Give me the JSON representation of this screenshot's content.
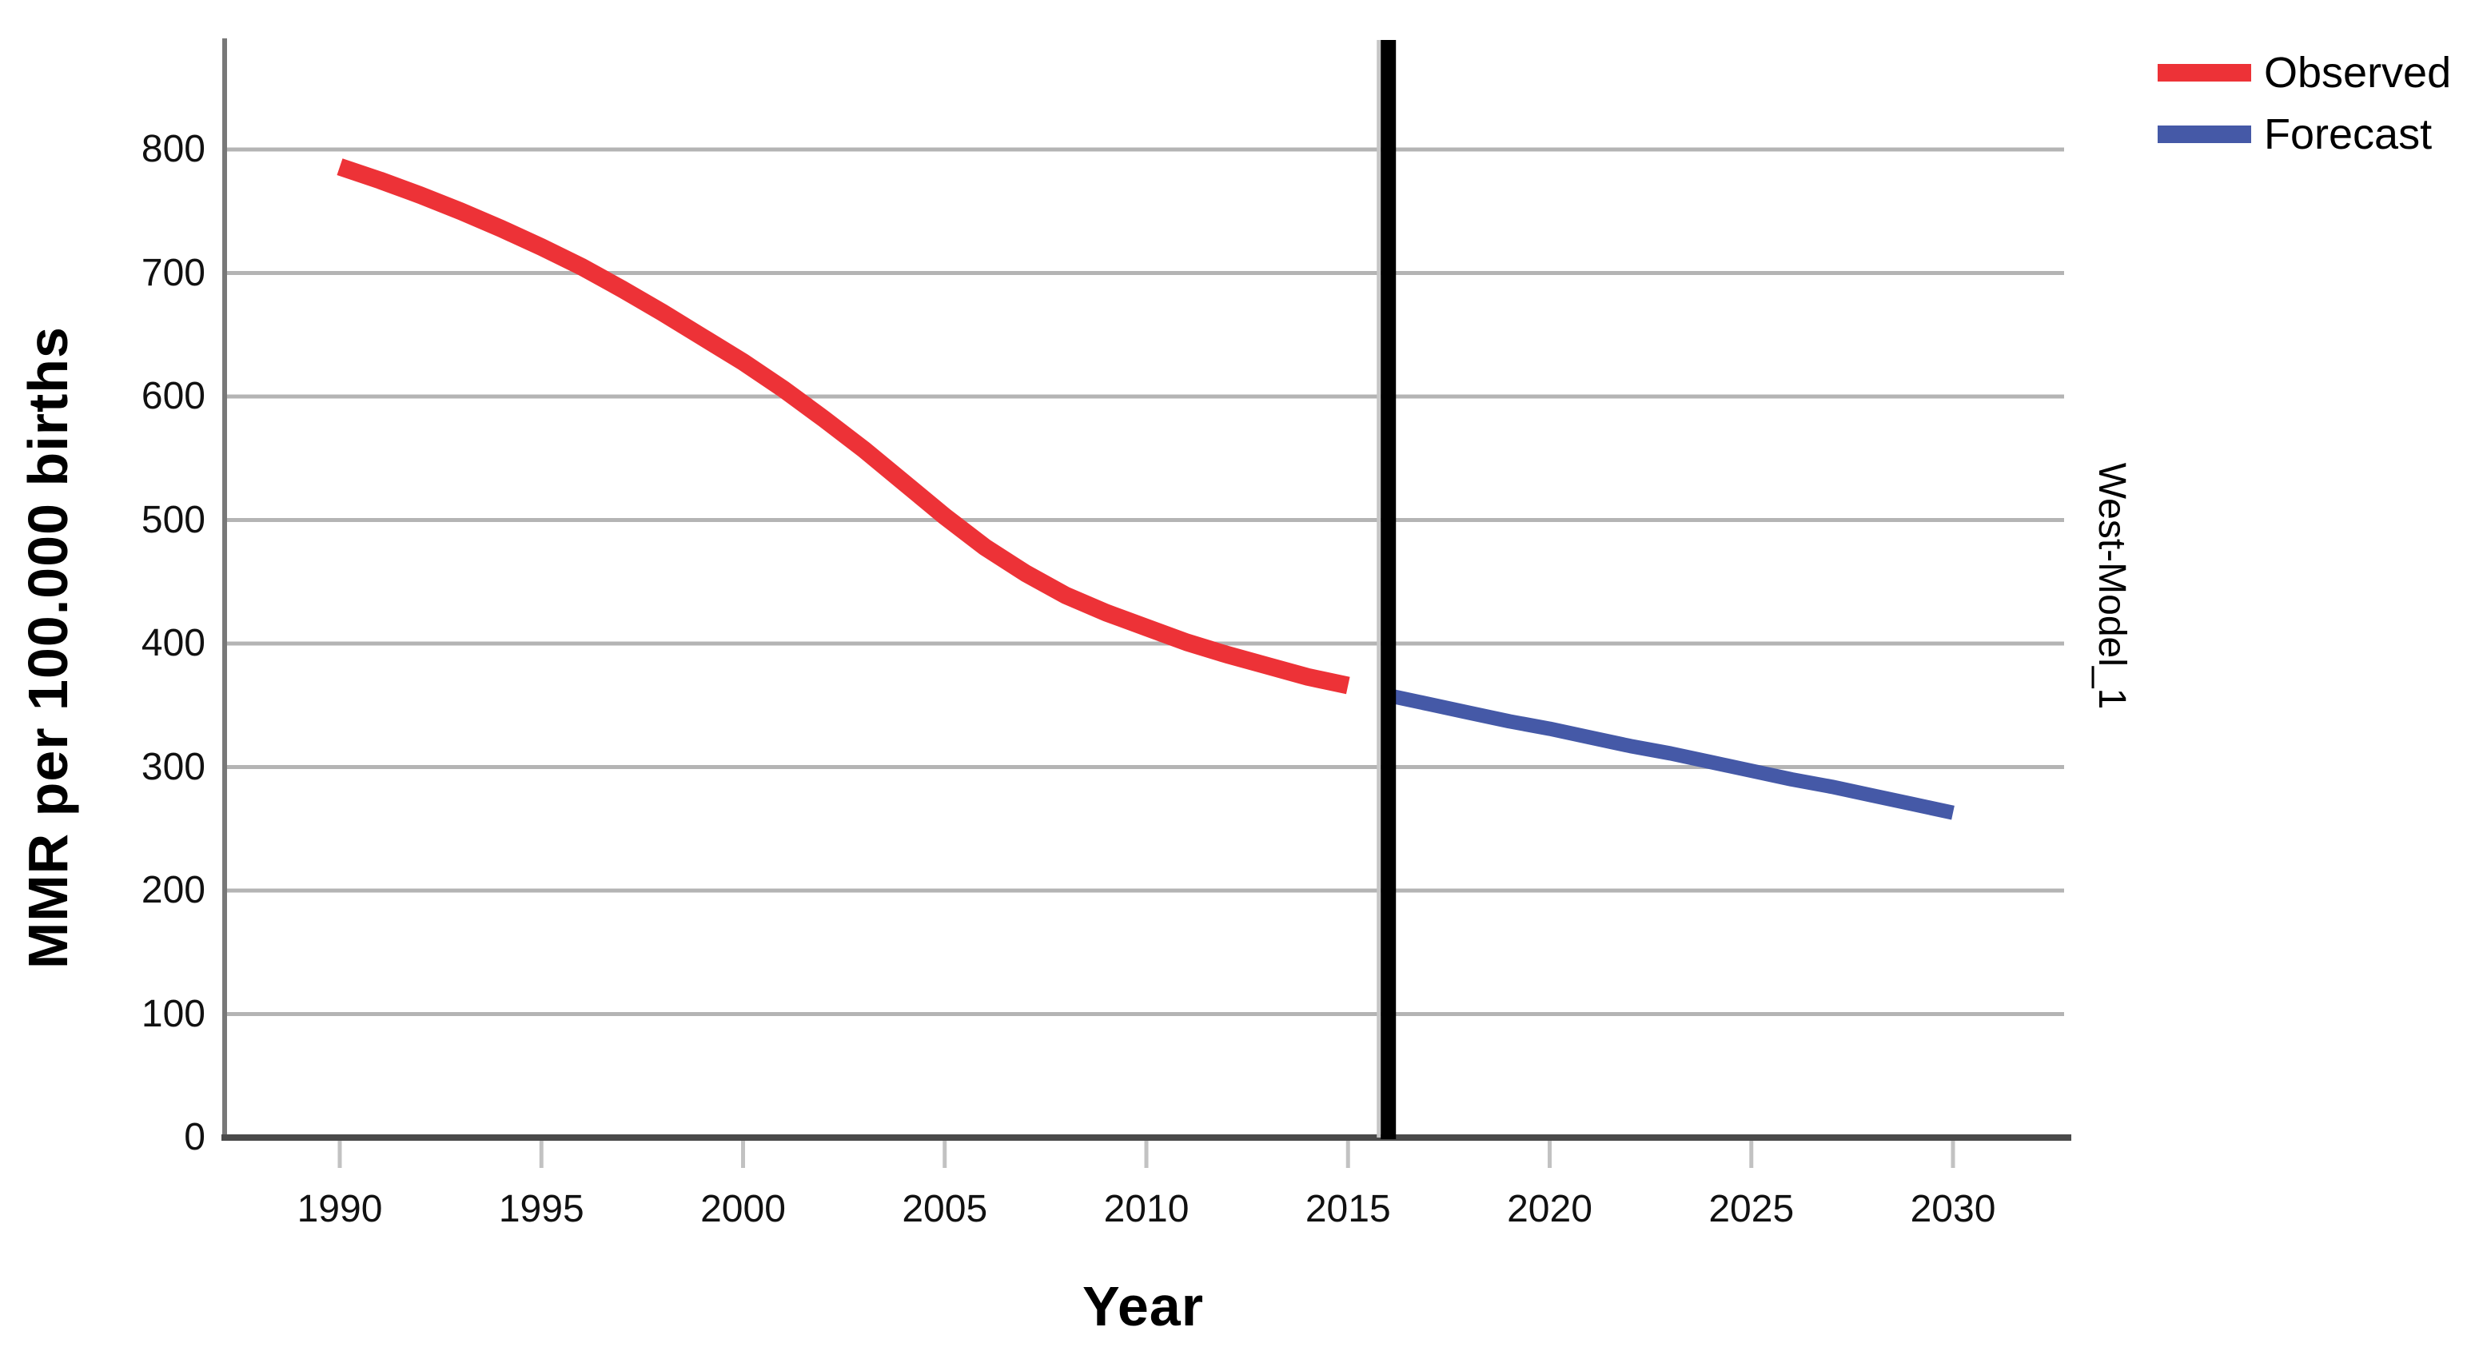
{
  "chart_data": {
    "type": "line",
    "title": "",
    "xlabel": "Year",
    "ylabel": "MMR per 100.000 births",
    "panel_label": "West-Model_1",
    "x_ticks": [
      1990,
      1995,
      2000,
      2005,
      2010,
      2015,
      2020,
      2025,
      2030
    ],
    "y_ticks": [
      0,
      100,
      200,
      300,
      400,
      500,
      600,
      700,
      800
    ],
    "xlim": [
      1987.1,
      2032.8
    ],
    "ylim": [
      0,
      888
    ],
    "grid": "horizontal-only",
    "legend_position": "top-right",
    "reference_line_x": 2016,
    "series": [
      {
        "name": "Observed",
        "color": "#ed3237",
        "x": [
          1990,
          1991,
          1992,
          1993,
          1994,
          1995,
          1996,
          1997,
          1998,
          1999,
          2000,
          2001,
          2002,
          2003,
          2004,
          2005,
          2006,
          2007,
          2008,
          2009,
          2010,
          2011,
          2012,
          2013,
          2014,
          2015
        ],
        "values": [
          786,
          775,
          763,
          750,
          736,
          721,
          705,
          687,
          668,
          648,
          628,
          606,
          582,
          557,
          530,
          503,
          478,
          457,
          439,
          425,
          413,
          401,
          391,
          382,
          373,
          366
        ]
      },
      {
        "name": "Forecast",
        "color": "#4559a7",
        "x": [
          2016,
          2017,
          2018,
          2019,
          2020,
          2021,
          2022,
          2023,
          2024,
          2025,
          2026,
          2027,
          2028,
          2029,
          2030
        ],
        "values": [
          358,
          351,
          344,
          337,
          331,
          324,
          317,
          311,
          304,
          297,
          290,
          284,
          277,
          270,
          263
        ]
      }
    ]
  },
  "legend": {
    "items": [
      {
        "label": "Observed",
        "color": "#ed3237"
      },
      {
        "label": "Forecast",
        "color": "#4559a7"
      }
    ]
  },
  "colors": {
    "background": "#ffffff",
    "gridline": "#b4b4b4",
    "x_axis_line": "#4a4a4a",
    "y_axis_line": "#787878",
    "tick_mark": "#c2c2c2",
    "reference_line": "#000000",
    "reference_line_shadow": "#c6c6c6",
    "text": "#000000"
  }
}
